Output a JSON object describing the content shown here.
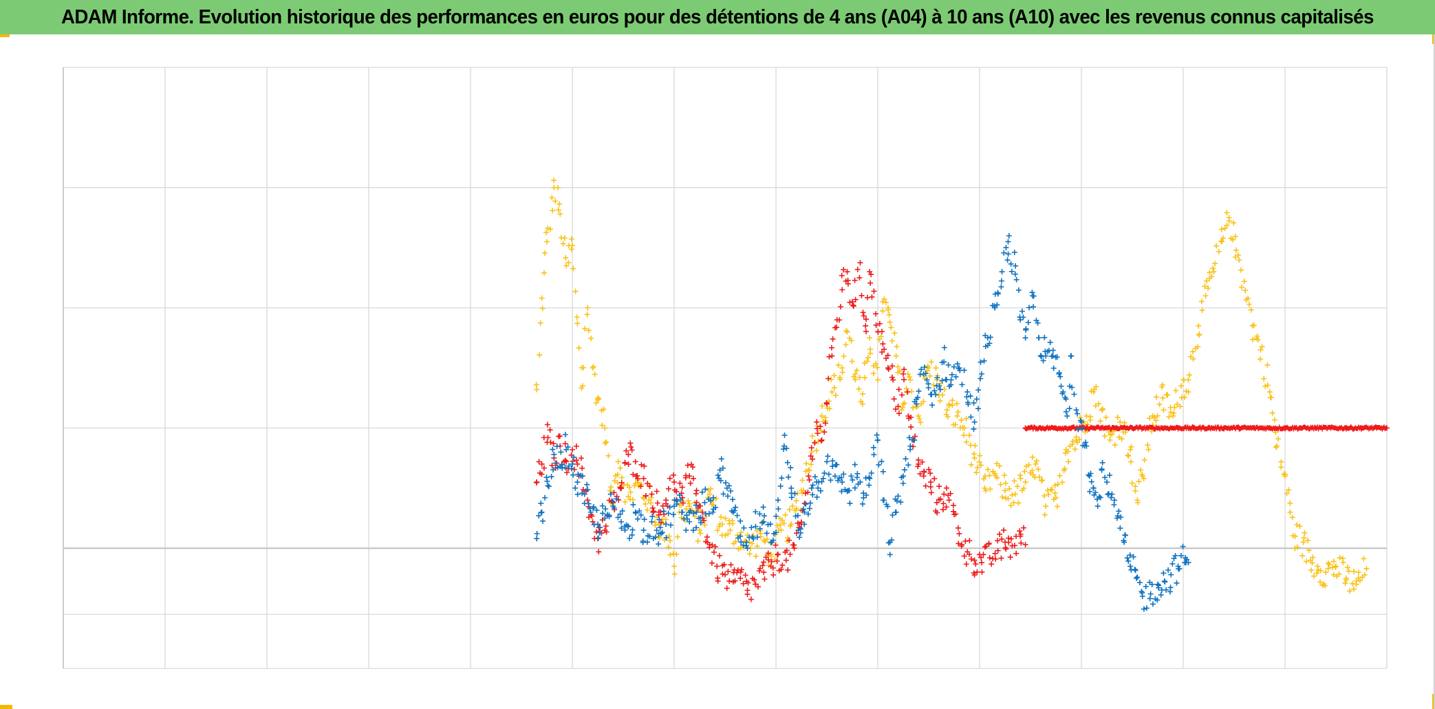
{
  "header": {
    "title": "ADAM Informe. Evolution historique des performances en euros pour des détentions de 4 ans (A04) à 10 ans (A10) avec les revenus connus capitalisés"
  },
  "chart_data": {
    "type": "scatter",
    "marker": "plus",
    "grid": true,
    "legend": "none",
    "xlim": [
      0,
      13
    ],
    "ylim": [
      -100,
      400
    ],
    "x_gridlines": [
      0,
      1,
      2,
      3,
      4,
      5,
      6,
      7,
      8,
      9,
      10,
      11,
      12,
      13
    ],
    "y_gridlines": [
      -100,
      -55,
      0,
      100,
      200,
      300,
      400
    ],
    "y_zero": 0,
    "colors": {
      "yellow": "#f9c21a",
      "red": "#ee1b1b",
      "blue": "#0e72c0"
    },
    "series": [
      {
        "color": "#f9c21a",
        "points": [
          [
            4.65,
            132
          ],
          [
            4.7,
            208
          ],
          [
            4.75,
            255
          ],
          [
            4.82,
            300
          ],
          [
            4.88,
            278
          ],
          [
            4.94,
            235
          ],
          [
            5.0,
            252
          ],
          [
            5.05,
            187
          ],
          [
            5.1,
            135
          ],
          [
            5.15,
            200
          ],
          [
            5.2,
            150
          ],
          [
            5.25,
            125
          ],
          [
            5.32,
            100
          ],
          [
            5.38,
            38
          ],
          [
            5.45,
            72
          ],
          [
            5.55,
            43
          ],
          [
            5.65,
            52
          ],
          [
            5.75,
            40
          ],
          [
            5.85,
            20
          ],
          [
            5.95,
            10
          ],
          [
            6.0,
            -15
          ],
          [
            6.05,
            30
          ],
          [
            6.15,
            35
          ],
          [
            6.25,
            15
          ],
          [
            6.35,
            45
          ],
          [
            6.45,
            20
          ],
          [
            6.55,
            15
          ],
          [
            6.65,
            10
          ],
          [
            6.75,
            0
          ],
          [
            6.85,
            12
          ],
          [
            6.95,
            -5
          ],
          [
            7.05,
            15
          ],
          [
            7.15,
            20
          ],
          [
            7.25,
            48
          ],
          [
            7.35,
            80
          ],
          [
            7.45,
            110
          ],
          [
            7.55,
            130
          ],
          [
            7.65,
            150
          ],
          [
            7.7,
            180
          ],
          [
            7.78,
            145
          ],
          [
            7.85,
            120
          ],
          [
            7.92,
            175
          ],
          [
            8.0,
            140
          ],
          [
            8.05,
            205
          ],
          [
            8.12,
            188
          ],
          [
            8.18,
            160
          ],
          [
            8.25,
            120
          ],
          [
            8.32,
            140
          ],
          [
            8.4,
            110
          ],
          [
            8.5,
            150
          ],
          [
            8.58,
            140
          ],
          [
            8.68,
            115
          ],
          [
            8.78,
            110
          ],
          [
            8.85,
            100
          ],
          [
            8.95,
            75
          ],
          [
            9.05,
            50
          ],
          [
            9.15,
            62
          ],
          [
            9.25,
            48
          ],
          [
            9.35,
            45
          ],
          [
            9.45,
            55
          ],
          [
            9.55,
            70
          ],
          [
            9.65,
            35
          ],
          [
            9.75,
            42
          ],
          [
            9.85,
            82
          ],
          [
            9.95,
            90
          ],
          [
            10.05,
            110
          ],
          [
            10.12,
            130
          ],
          [
            10.2,
            115
          ],
          [
            10.28,
            90
          ],
          [
            10.38,
            105
          ],
          [
            10.48,
            82
          ],
          [
            10.55,
            40
          ],
          [
            10.6,
            60
          ],
          [
            10.7,
            110
          ],
          [
            10.8,
            125
          ],
          [
            10.9,
            110
          ],
          [
            10.98,
            135
          ],
          [
            11.05,
            140
          ],
          [
            11.15,
            185
          ],
          [
            11.22,
            210
          ],
          [
            11.3,
            230
          ],
          [
            11.38,
            255
          ],
          [
            11.45,
            275
          ],
          [
            11.52,
            248
          ],
          [
            11.6,
            222
          ],
          [
            11.68,
            185
          ],
          [
            11.76,
            165
          ],
          [
            11.85,
            130
          ],
          [
            11.92,
            85
          ],
          [
            12.0,
            60
          ],
          [
            12.05,
            30
          ],
          [
            12.1,
            10
          ],
          [
            12.18,
            5
          ],
          [
            12.25,
            -10
          ],
          [
            12.32,
            -15
          ],
          [
            12.4,
            -20
          ],
          [
            12.5,
            -15
          ],
          [
            12.6,
            -25
          ],
          [
            12.7,
            -30
          ],
          [
            12.8,
            -17
          ]
        ]
      },
      {
        "color": "#ee1b1b",
        "points": [
          [
            4.65,
            55
          ],
          [
            4.7,
            70
          ],
          [
            4.76,
            92
          ],
          [
            4.82,
            75
          ],
          [
            4.88,
            85
          ],
          [
            4.94,
            72
          ],
          [
            5.0,
            82
          ],
          [
            5.05,
            70
          ],
          [
            5.1,
            60
          ],
          [
            5.15,
            40
          ],
          [
            5.2,
            22
          ],
          [
            5.25,
            8
          ],
          [
            5.32,
            15
          ],
          [
            5.4,
            38
          ],
          [
            5.48,
            50
          ],
          [
            5.55,
            78
          ],
          [
            5.62,
            72
          ],
          [
            5.7,
            58
          ],
          [
            5.78,
            45
          ],
          [
            5.85,
            30
          ],
          [
            5.92,
            40
          ],
          [
            6.0,
            55
          ],
          [
            6.08,
            42
          ],
          [
            6.15,
            60
          ],
          [
            6.22,
            48
          ],
          [
            6.28,
            25
          ],
          [
            6.35,
            3
          ],
          [
            6.42,
            -15
          ],
          [
            6.5,
            -22
          ],
          [
            6.58,
            -28
          ],
          [
            6.65,
            -25
          ],
          [
            6.72,
            -35
          ],
          [
            6.8,
            -30
          ],
          [
            6.88,
            -20
          ],
          [
            6.95,
            -15
          ],
          [
            7.02,
            -5
          ],
          [
            7.1,
            -10
          ],
          [
            7.18,
            0
          ],
          [
            7.25,
            20
          ],
          [
            7.32,
            60
          ],
          [
            7.4,
            105
          ],
          [
            7.45,
            90
          ],
          [
            7.5,
            120
          ],
          [
            7.55,
            160
          ],
          [
            7.6,
            190
          ],
          [
            7.65,
            215
          ],
          [
            7.7,
            230
          ],
          [
            7.75,
            205
          ],
          [
            7.82,
            225
          ],
          [
            7.88,
            185
          ],
          [
            7.92,
            230
          ],
          [
            7.98,
            195
          ],
          [
            8.05,
            170
          ],
          [
            8.1,
            150
          ],
          [
            8.15,
            140
          ],
          [
            8.2,
            118
          ],
          [
            8.25,
            145
          ],
          [
            8.3,
            110
          ],
          [
            8.35,
            90
          ],
          [
            8.4,
            70
          ],
          [
            8.45,
            60
          ],
          [
            8.52,
            55
          ],
          [
            8.58,
            38
          ],
          [
            8.65,
            45
          ],
          [
            8.7,
            40
          ],
          [
            8.75,
            28
          ],
          [
            8.8,
            12
          ],
          [
            8.88,
            -3
          ],
          [
            8.95,
            -10
          ],
          [
            9.02,
            -12
          ],
          [
            9.1,
            -8
          ],
          [
            9.18,
            -2
          ],
          [
            9.25,
            5
          ],
          [
            9.32,
            2
          ],
          [
            9.4,
            10
          ],
          [
            9.45,
            3
          ]
        ]
      },
      {
        "color": "#ee1b1b",
        "points": [
          [
            9.45,
            100
          ],
          [
            9.6,
            100
          ],
          [
            9.75,
            100
          ],
          [
            9.9,
            100
          ],
          [
            10.05,
            100
          ],
          [
            10.2,
            100
          ],
          [
            10.35,
            100
          ],
          [
            10.5,
            100
          ],
          [
            10.65,
            100
          ],
          [
            10.8,
            100
          ],
          [
            10.95,
            100
          ],
          [
            11.1,
            100
          ],
          [
            11.25,
            100
          ],
          [
            11.4,
            100
          ],
          [
            11.55,
            100
          ],
          [
            11.7,
            100
          ],
          [
            11.85,
            100
          ],
          [
            12.0,
            100
          ],
          [
            12.15,
            100
          ],
          [
            12.3,
            100
          ],
          [
            12.45,
            100
          ],
          [
            12.6,
            100
          ],
          [
            12.75,
            100
          ],
          [
            12.9,
            100
          ],
          [
            13.0,
            100
          ]
        ]
      },
      {
        "color": "#0e72c0",
        "points": [
          [
            4.65,
            8
          ],
          [
            4.7,
            30
          ],
          [
            4.76,
            52
          ],
          [
            4.82,
            78
          ],
          [
            4.88,
            68
          ],
          [
            4.94,
            82
          ],
          [
            5.0,
            70
          ],
          [
            5.05,
            55
          ],
          [
            5.12,
            45
          ],
          [
            5.18,
            30
          ],
          [
            5.25,
            20
          ],
          [
            5.32,
            25
          ],
          [
            5.4,
            35
          ],
          [
            5.48,
            22
          ],
          [
            5.55,
            18
          ],
          [
            5.62,
            30
          ],
          [
            5.7,
            15
          ],
          [
            5.78,
            22
          ],
          [
            5.85,
            12
          ],
          [
            5.92,
            20
          ],
          [
            6.0,
            35
          ],
          [
            6.08,
            30
          ],
          [
            6.15,
            22
          ],
          [
            6.22,
            30
          ],
          [
            6.3,
            38
          ],
          [
            6.38,
            30
          ],
          [
            6.45,
            65
          ],
          [
            6.52,
            50
          ],
          [
            6.58,
            30
          ],
          [
            6.65,
            10
          ],
          [
            6.72,
            0
          ],
          [
            6.8,
            18
          ],
          [
            6.88,
            22
          ],
          [
            6.95,
            5
          ],
          [
            7.02,
            40
          ],
          [
            7.08,
            85
          ],
          [
            7.15,
            50
          ],
          [
            7.22,
            15
          ],
          [
            7.28,
            30
          ],
          [
            7.35,
            50
          ],
          [
            7.42,
            55
          ],
          [
            7.5,
            72
          ],
          [
            7.58,
            60
          ],
          [
            7.65,
            55
          ],
          [
            7.72,
            48
          ],
          [
            7.8,
            62
          ],
          [
            7.86,
            42
          ],
          [
            7.92,
            58
          ],
          [
            8.0,
            90
          ],
          [
            8.06,
            40
          ],
          [
            8.12,
            5
          ],
          [
            8.18,
            30
          ],
          [
            8.25,
            60
          ],
          [
            8.32,
            85
          ],
          [
            8.38,
            120
          ],
          [
            8.45,
            145
          ],
          [
            8.52,
            128
          ],
          [
            8.58,
            135
          ],
          [
            8.65,
            155
          ],
          [
            8.72,
            140
          ],
          [
            8.8,
            150
          ],
          [
            8.88,
            130
          ],
          [
            8.95,
            105
          ],
          [
            9.02,
            145
          ],
          [
            9.08,
            175
          ],
          [
            9.15,
            200
          ],
          [
            9.22,
            230
          ],
          [
            9.28,
            255
          ],
          [
            9.35,
            228
          ],
          [
            9.4,
            190
          ],
          [
            9.45,
            175
          ],
          [
            9.52,
            210
          ],
          [
            9.58,
            175
          ],
          [
            9.65,
            160
          ],
          [
            9.72,
            160
          ],
          [
            9.78,
            145
          ],
          [
            9.82,
            130
          ],
          [
            9.86,
            110
          ],
          [
            9.9,
            160
          ],
          [
            9.95,
            115
          ],
          [
            10.0,
            105
          ],
          [
            10.05,
            85
          ],
          [
            10.08,
            60
          ],
          [
            10.12,
            50
          ],
          [
            10.16,
            35
          ],
          [
            10.2,
            65
          ],
          [
            10.25,
            55
          ],
          [
            10.3,
            45
          ],
          [
            10.35,
            25
          ],
          [
            10.42,
            5
          ],
          [
            10.48,
            -15
          ],
          [
            10.54,
            -25
          ],
          [
            10.6,
            -40
          ],
          [
            10.68,
            -38
          ],
          [
            10.75,
            -30
          ],
          [
            10.82,
            -28
          ],
          [
            10.88,
            -22
          ],
          [
            10.95,
            -15
          ],
          [
            11.02,
            -8
          ],
          [
            11.05,
            -12
          ]
        ]
      }
    ]
  }
}
